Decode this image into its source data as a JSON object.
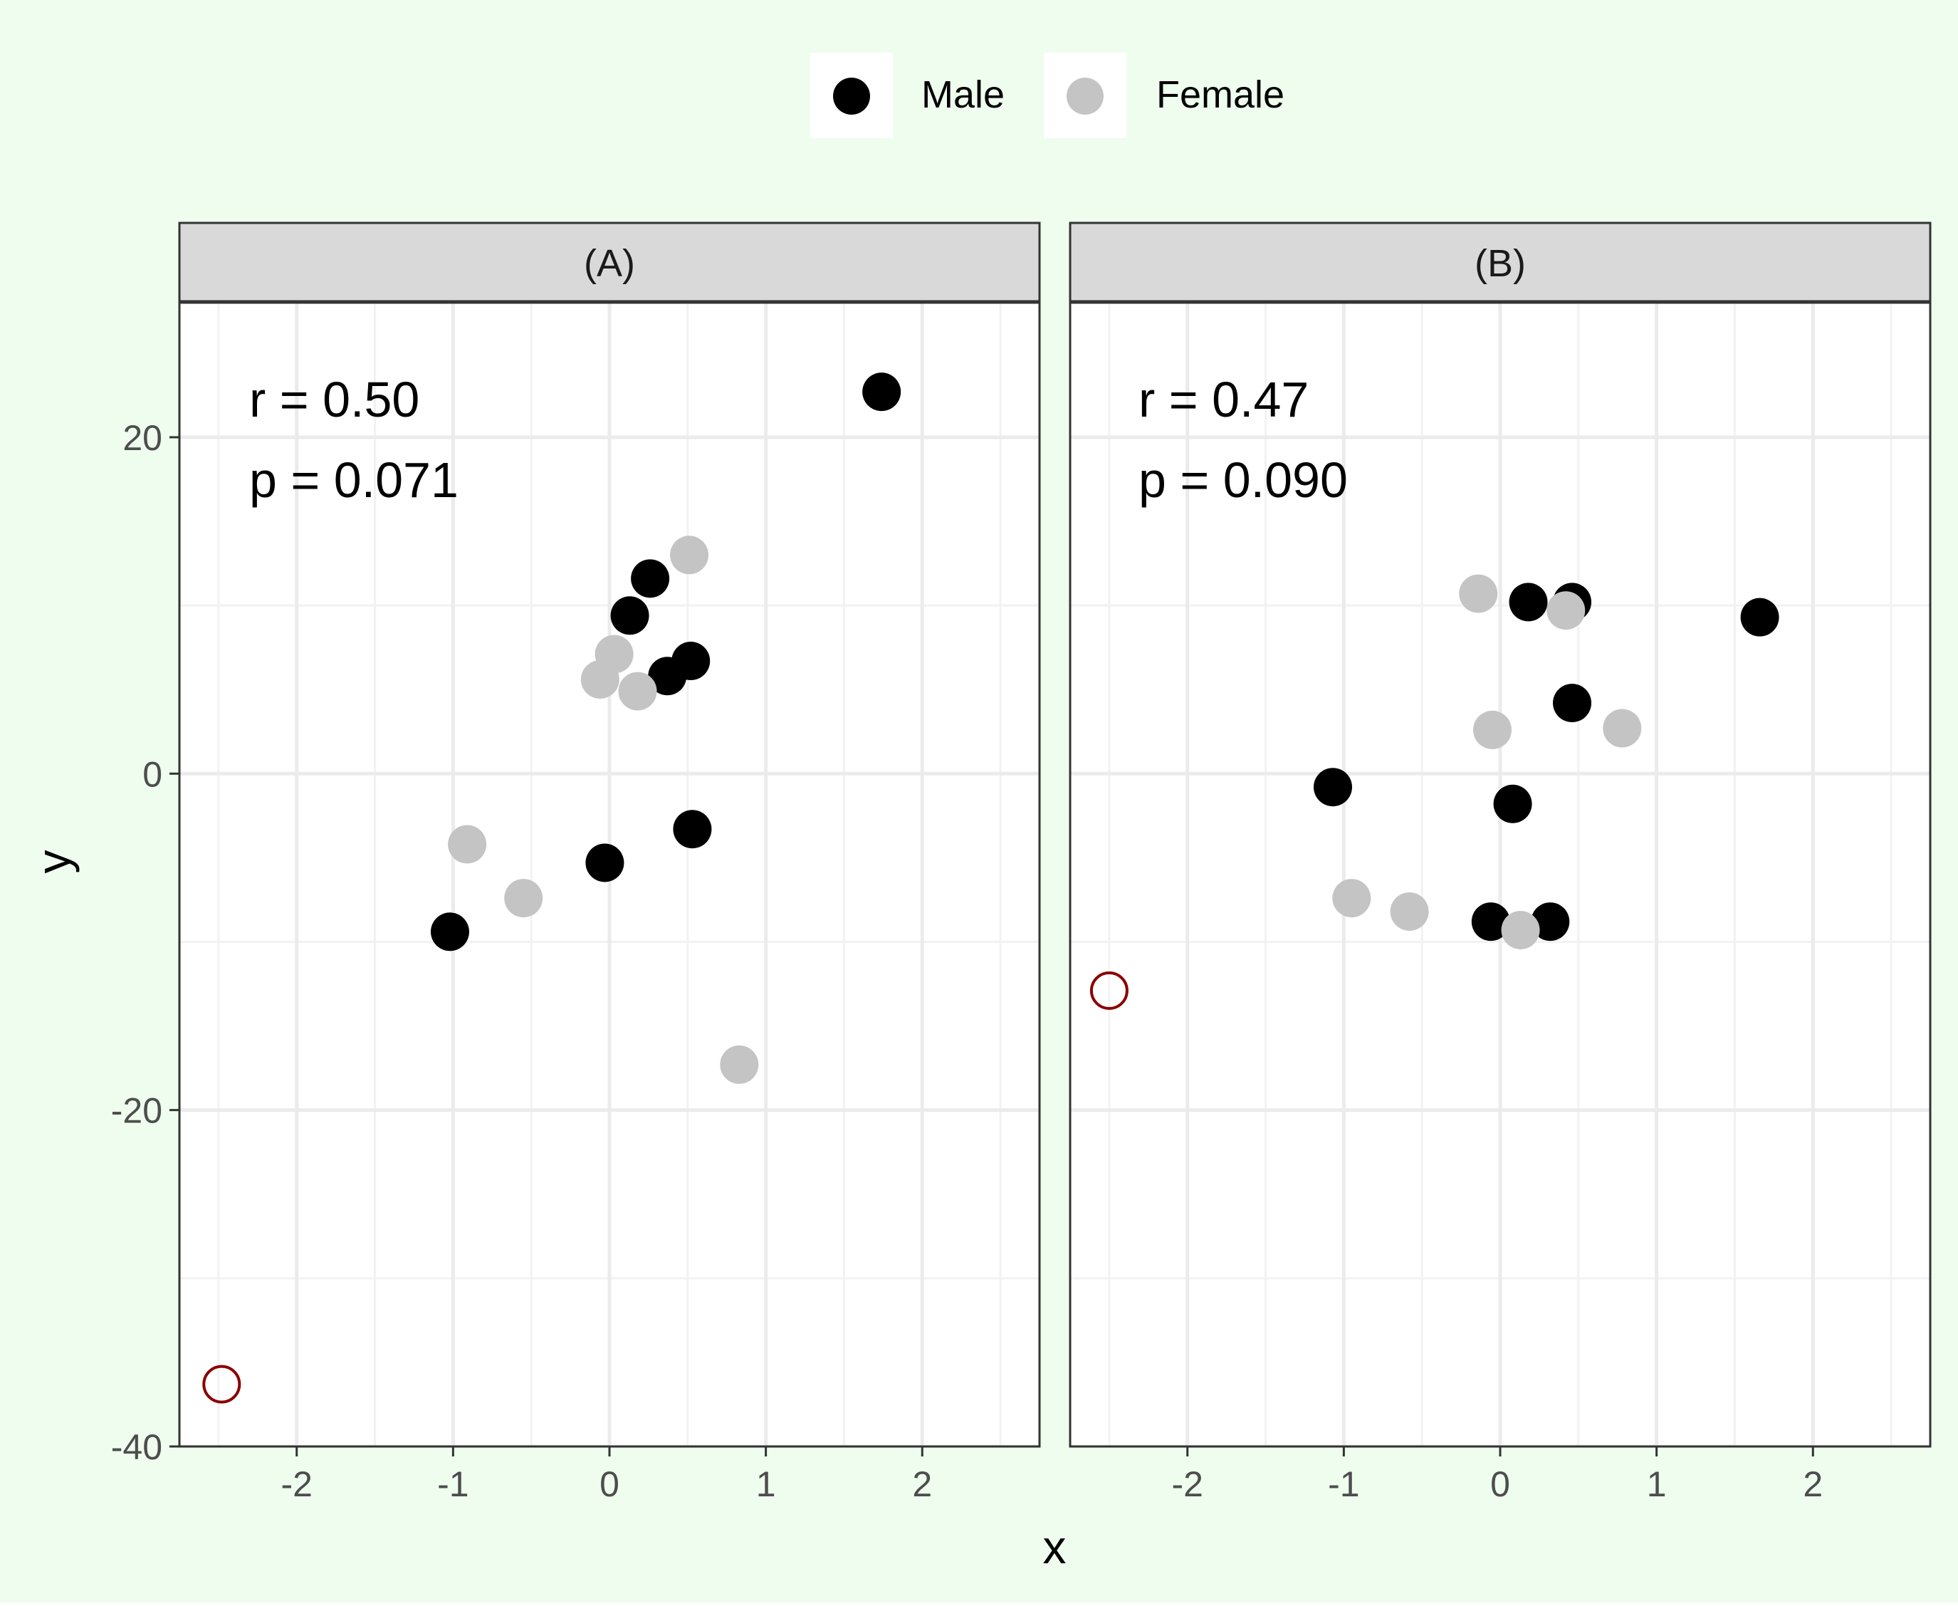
{
  "background_color": "#effdef",
  "legend": {
    "items": [
      {
        "label": "Male",
        "color": "#000000"
      },
      {
        "label": "Female",
        "color": "#c4c4c4"
      }
    ],
    "placement": "top-center"
  },
  "x_axis_label": "x",
  "y_axis_label": "y",
  "outlier_color": "#8b0000",
  "chart_data": [
    {
      "type": "scatter",
      "panel_title": "(A)",
      "stats": {
        "r": "r = 0.50",
        "p": "p = 0.071"
      },
      "xlim": [
        -2.75,
        2.75
      ],
      "ylim": [
        -40,
        28
      ],
      "xticks": [
        -2,
        -1,
        0,
        1,
        2
      ],
      "xtick_labels": [
        "-2",
        "-1",
        "0",
        "1",
        "2"
      ],
      "yticks": [
        -40,
        -20,
        0,
        20
      ],
      "ytick_labels": [
        "-40",
        "-20",
        "0",
        "20"
      ],
      "grid": true,
      "series": [
        {
          "name": "Male",
          "points": [
            [
              1.74,
              22.7
            ],
            [
              0.26,
              11.6
            ],
            [
              0.13,
              9.4
            ],
            [
              0.52,
              6.7
            ],
            [
              0.37,
              5.8
            ],
            [
              0.53,
              -3.3
            ],
            [
              -0.03,
              -5.3
            ],
            [
              -1.02,
              -9.4
            ]
          ]
        },
        {
          "name": "Female",
          "points": [
            [
              0.51,
              13.0
            ],
            [
              0.03,
              7.1
            ],
            [
              -0.06,
              5.6
            ],
            [
              0.18,
              4.9
            ],
            [
              -0.91,
              -4.2
            ],
            [
              -0.55,
              -7.4
            ],
            [
              0.83,
              -17.3
            ]
          ]
        }
      ],
      "outliers": [
        [
          -2.48,
          -36.3
        ]
      ]
    },
    {
      "type": "scatter",
      "panel_title": "(B)",
      "stats": {
        "r": "r = 0.47",
        "p": "p = 0.090"
      },
      "xlim": [
        -2.75,
        2.75
      ],
      "ylim": [
        -40,
        28
      ],
      "xticks": [
        -2,
        -1,
        0,
        1,
        2
      ],
      "xtick_labels": [
        "-2",
        "-1",
        "0",
        "1",
        "2"
      ],
      "yticks": [
        -40,
        -20,
        0,
        20
      ],
      "ytick_labels": [
        "-40",
        "-20",
        "0",
        "20"
      ],
      "grid": true,
      "series": [
        {
          "name": "Male",
          "points": [
            [
              0.18,
              10.2
            ],
            [
              0.46,
              10.2
            ],
            [
              1.66,
              9.3
            ],
            [
              0.46,
              4.2
            ],
            [
              -1.07,
              -0.8
            ],
            [
              0.08,
              -1.8
            ],
            [
              -0.06,
              -8.8
            ],
            [
              0.32,
              -8.8
            ]
          ]
        },
        {
          "name": "Female",
          "points": [
            [
              -0.14,
              10.7
            ],
            [
              0.42,
              9.7
            ],
            [
              -0.05,
              2.6
            ],
            [
              0.78,
              2.7
            ],
            [
              -0.95,
              -7.4
            ],
            [
              -0.58,
              -8.2
            ],
            [
              0.13,
              -9.3
            ]
          ]
        }
      ],
      "outliers": [
        [
          -2.5,
          -12.9
        ]
      ]
    }
  ]
}
